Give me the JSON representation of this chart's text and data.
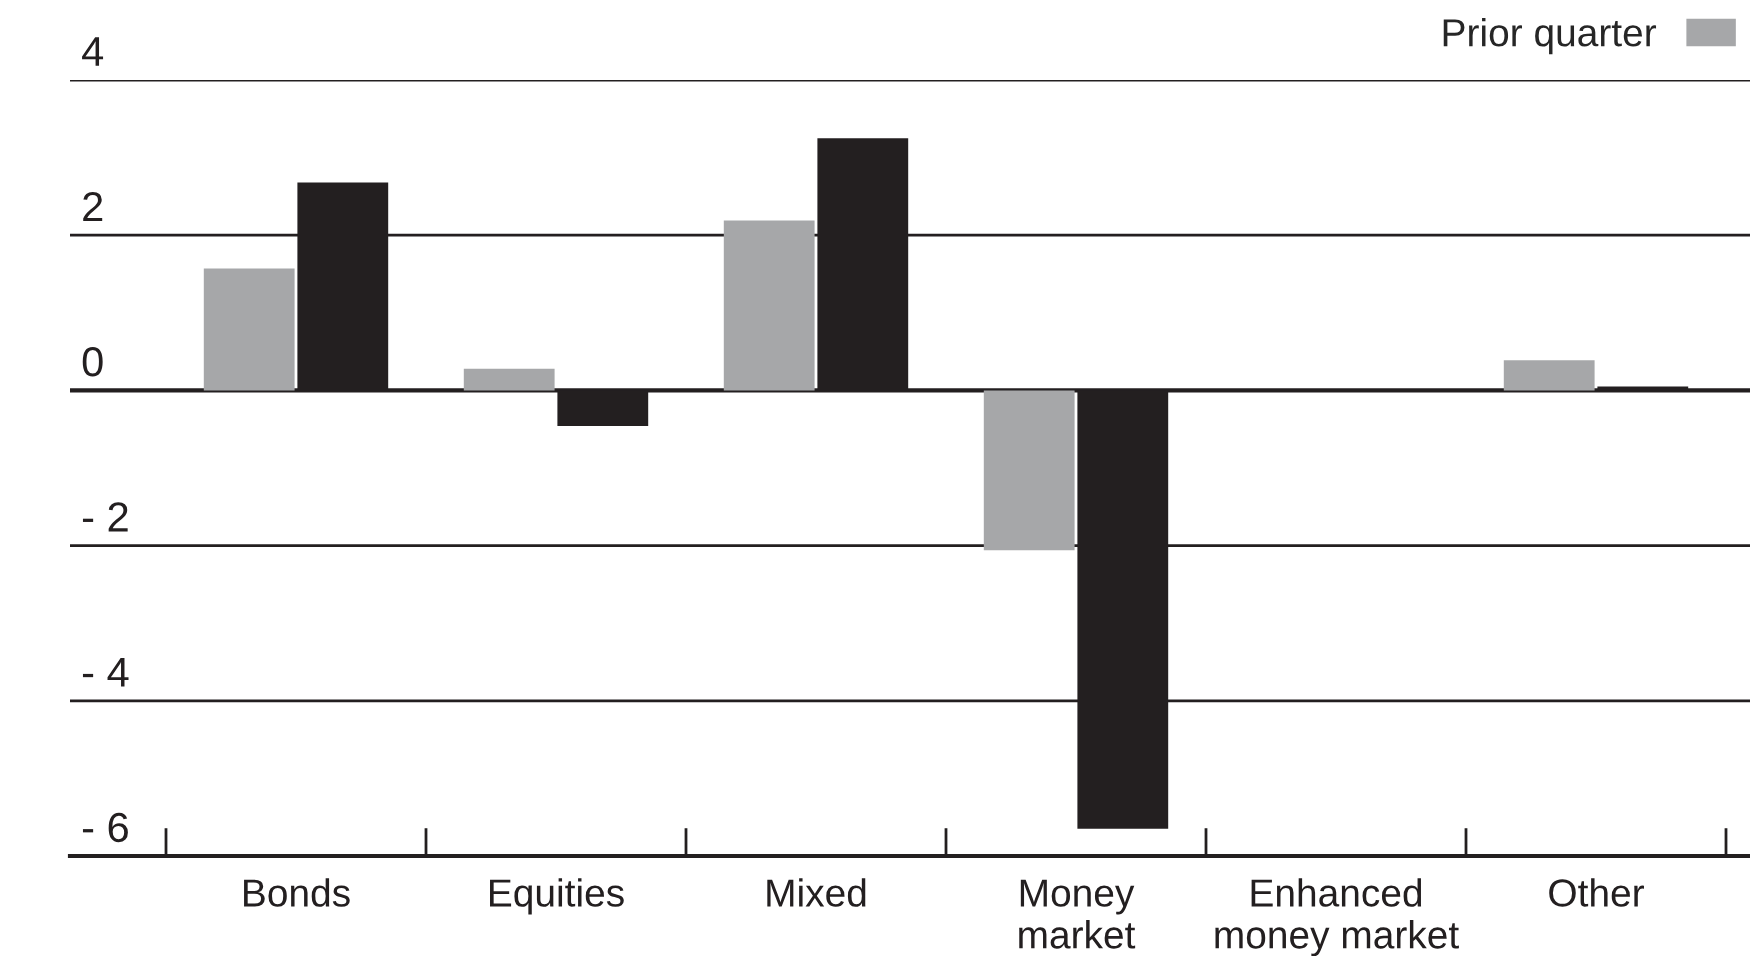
{
  "chart_data": {
    "type": "bar",
    "categories": [
      "Bonds",
      "Equities",
      "Mixed",
      "Money\nmarket",
      "Enhanced\nmoney market",
      "Other"
    ],
    "series": [
      {
        "name": "Prior quarter",
        "color": "#a6a7a9",
        "values": [
          1.57,
          0.28,
          2.19,
          -2.06,
          0,
          0.39
        ]
      },
      {
        "color": "#231f20",
        "values": [
          2.68,
          -0.46,
          3.25,
          -5.65,
          0,
          0.05
        ]
      }
    ],
    "ylim": [
      -6,
      4
    ],
    "yticks": [
      4,
      2,
      0,
      {
        "value": -2,
        "label": "- 2"
      },
      {
        "value": -4,
        "label": "- 4"
      },
      {
        "value": -6,
        "label": "- 6"
      }
    ],
    "grid": "y",
    "legend": "top right"
  }
}
